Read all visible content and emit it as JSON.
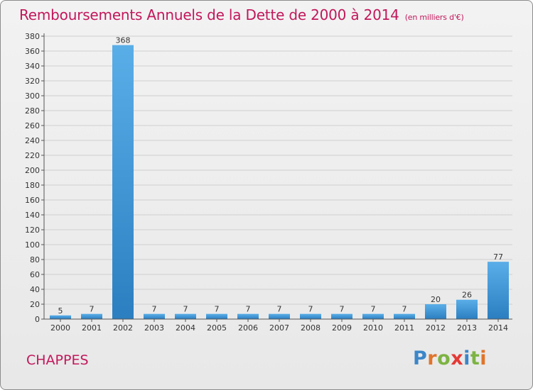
{
  "header": {
    "title": "Remboursements Annuels de la Dette de 2000 à 2014",
    "subtitle": "(en milliers d'€)"
  },
  "footer": {
    "commune": "CHAPPES",
    "logo_text": "Proxiti",
    "logo_letters": [
      {
        "ch": "P",
        "color": "#3a86c8"
      },
      {
        "ch": "r",
        "color": "#e0742b"
      },
      {
        "ch": "o",
        "color": "#7cb342"
      },
      {
        "ch": "x",
        "color": "#e53935"
      },
      {
        "ch": "i",
        "color": "#3a86c8"
      },
      {
        "ch": "t",
        "color": "#7cb342"
      },
      {
        "ch": "i",
        "color": "#e0742b"
      }
    ]
  },
  "colors": {
    "bar_light": "#5aaee8",
    "bar_dark": "#2b7fc0",
    "grid": "#cfcfcf",
    "axis": "#555555",
    "label": "#333333",
    "accent": "#c2185b"
  },
  "chart_data": {
    "type": "bar",
    "title": "Remboursements Annuels de la Dette de 2000 à 2014",
    "subtitle": "(en milliers d'€)",
    "xlabel": "",
    "ylabel": "",
    "categories": [
      "2000",
      "2001",
      "2002",
      "2003",
      "2004",
      "2005",
      "2006",
      "2007",
      "2008",
      "2009",
      "2010",
      "2011",
      "2012",
      "2013",
      "2014"
    ],
    "values": [
      5,
      7,
      368,
      7,
      7,
      7,
      7,
      7,
      7,
      7,
      7,
      7,
      20,
      26,
      77
    ],
    "data_labels": [
      "5",
      "7",
      "368",
      "7",
      "7",
      "7",
      "7",
      "7",
      "7",
      "7",
      "7",
      "7",
      "20",
      "26",
      "77"
    ],
    "ylim": [
      0,
      380
    ],
    "yticks": [
      0,
      20,
      40,
      60,
      80,
      100,
      120,
      140,
      160,
      180,
      200,
      220,
      240,
      260,
      280,
      300,
      320,
      340,
      360,
      380
    ],
    "grid": true,
    "legend": "none"
  }
}
